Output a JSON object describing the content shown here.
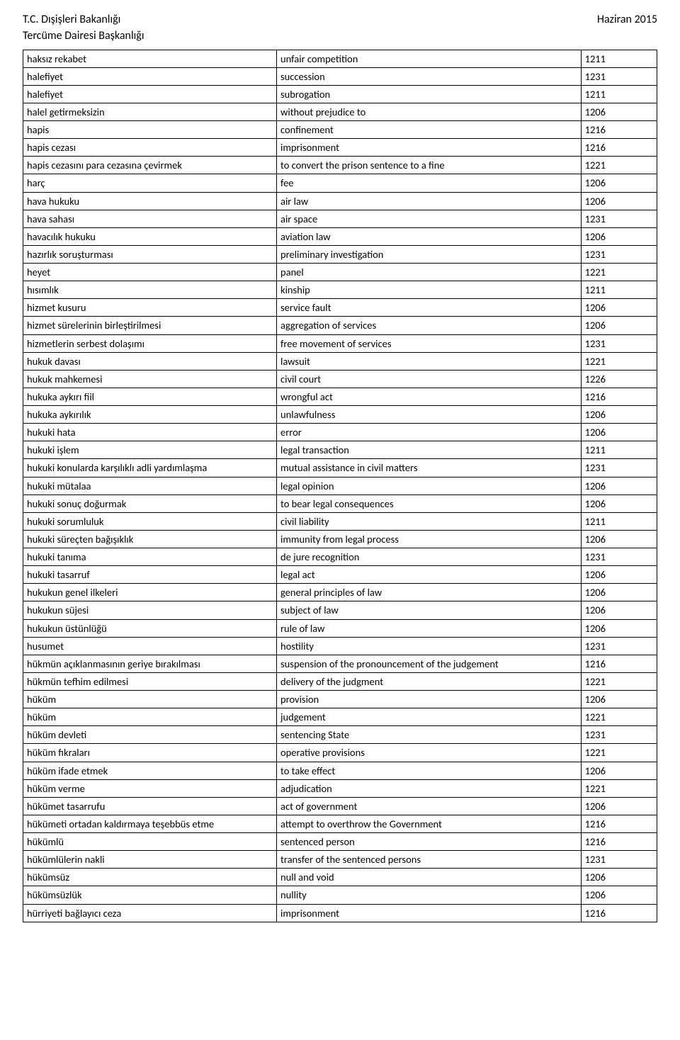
{
  "header": {
    "left_line1": "T.C. Dışişleri Bakanlığı",
    "left_line2": "Tercüme Dairesi Başkanlığı",
    "right": "Haziran 2015"
  },
  "table": {
    "columns": [
      "term_tr",
      "term_en",
      "code"
    ],
    "col_widths_pct": [
      40,
      48,
      12
    ],
    "border_color": "#000000",
    "font_size_pt": 11,
    "rows": [
      [
        "haksız rekabet",
        "unfair competition",
        "1211"
      ],
      [
        "halefiyet",
        "succession",
        "1231"
      ],
      [
        "halefiyet",
        "subrogation",
        "1211"
      ],
      [
        "halel getirmeksizin",
        "without prejudice to",
        "1206"
      ],
      [
        "hapis",
        "confinement",
        "1216"
      ],
      [
        "hapis cezası",
        "imprisonment",
        "1216"
      ],
      [
        "hapis cezasını para cezasına çevirmek",
        "to convert the prison sentence to a fine",
        "1221"
      ],
      [
        "harç",
        "fee",
        "1206"
      ],
      [
        "hava hukuku",
        "air law",
        "1206"
      ],
      [
        "hava sahası",
        "air space",
        "1231"
      ],
      [
        "havacılık hukuku",
        "aviation law",
        "1206"
      ],
      [
        "hazırlık soruşturması",
        "preliminary investigation",
        "1231"
      ],
      [
        "heyet",
        "panel",
        "1221"
      ],
      [
        "hısımlık",
        "kinship",
        "1211"
      ],
      [
        "hizmet kusuru",
        "service fault",
        "1206"
      ],
      [
        "hizmet sürelerinin birleştirilmesi",
        "aggregation of services",
        "1206"
      ],
      [
        "hizmetlerin serbest dolaşımı",
        "free movement of services",
        "1231"
      ],
      [
        "hukuk davası",
        "lawsuit",
        "1221"
      ],
      [
        "hukuk mahkemesi",
        "civil court",
        "1226"
      ],
      [
        "hukuka aykırı fiil",
        "wrongful act",
        "1216"
      ],
      [
        "hukuka aykırılık",
        "unlawfulness",
        "1206"
      ],
      [
        "hukuki hata",
        "error",
        "1206"
      ],
      [
        "hukuki işlem",
        "legal transaction",
        "1211"
      ],
      [
        "hukuki konularda karşılıklı adli yardımlaşma",
        "mutual assistance in civil matters",
        "1231"
      ],
      [
        "hukuki mütalaa",
        "legal opinion",
        "1206"
      ],
      [
        "hukuki sonuç doğurmak",
        "to bear legal consequences",
        "1206"
      ],
      [
        "hukuki sorumluluk",
        "civil liability",
        "1211"
      ],
      [
        "hukuki süreçten bağışıklık",
        "immunity from legal process",
        "1206"
      ],
      [
        "hukuki tanıma",
        "de jure recognition",
        "1231"
      ],
      [
        "hukuki tasarruf",
        "legal act",
        "1206"
      ],
      [
        "hukukun genel ilkeleri",
        "general principles of law",
        "1206"
      ],
      [
        "hukukun süjesi",
        "subject of law",
        "1206"
      ],
      [
        "hukukun üstünlüğü",
        "rule of law",
        "1206"
      ],
      [
        "husumet",
        "hostility",
        "1231"
      ],
      [
        "hükmün açıklanmasının geriye bırakılması",
        "suspension of the pronouncement of the judgement",
        "1216"
      ],
      [
        "hükmün tefhim edilmesi",
        "delivery of the judgment",
        "1221"
      ],
      [
        "hüküm",
        "provision",
        "1206"
      ],
      [
        "hüküm",
        "judgement",
        "1221"
      ],
      [
        "hüküm devleti",
        "sentencing State",
        "1231"
      ],
      [
        "hüküm fıkraları",
        "operative provisions",
        "1221"
      ],
      [
        "hüküm ifade etmek",
        "to take effect",
        "1206"
      ],
      [
        "hüküm verme",
        "adjudication",
        "1221"
      ],
      [
        "hükümet tasarrufu",
        "act of government",
        "1206"
      ],
      [
        "hükümeti ortadan kaldırmaya teşebbüs etme",
        "attempt to overthrow the Government",
        "1216"
      ],
      [
        "hükümlü",
        "sentenced person",
        "1216"
      ],
      [
        "hükümlülerin nakli",
        "transfer of the sentenced persons",
        "1231"
      ],
      [
        "hükümsüz",
        "null and void",
        "1206"
      ],
      [
        "hükümsüzlük",
        "nullity",
        "1206"
      ],
      [
        "hürriyeti bağlayıcı ceza",
        "imprisonment",
        "1216"
      ]
    ]
  }
}
